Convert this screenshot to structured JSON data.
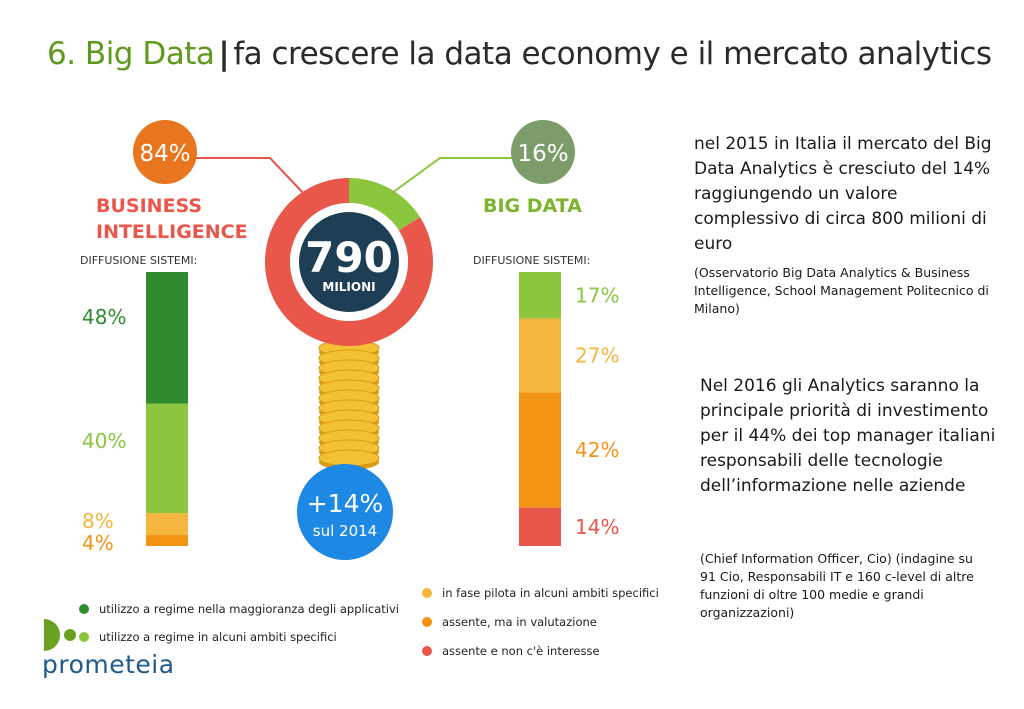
{
  "slide": {
    "title_accent": "6. Big Data",
    "title_sep": "|",
    "title_rest": "fa crescere la data economy e il mercato analytics"
  },
  "chart_data": {
    "type": "infographic",
    "center": {
      "value": "790",
      "unit": "MILIONI"
    },
    "growth": {
      "value": "+14%",
      "label": "sul 2014"
    },
    "split": [
      {
        "name": "BUSINESS\nINTELLIGENCE",
        "label_line1": "BUSINESS",
        "label_line2": "INTELLIGENCE",
        "share": 84,
        "display": "84%"
      },
      {
        "name": "BIG DATA",
        "label_line1": "BIG DATA",
        "share": 16,
        "display": "16%"
      }
    ],
    "diffusion_label": "DIFFUSIONE SISTEMI:",
    "legend": [
      {
        "key": "regime_maggioranza",
        "label": "utilizzo a regime nella maggioranza degli applicativi",
        "color": "#2e8b2e"
      },
      {
        "key": "regime_alcuni",
        "label": "utilizzo a regime in alcuni ambiti specifici",
        "color": "#8cc63f"
      },
      {
        "key": "pilota",
        "label": "in fase pilota in alcuni ambiti specifici",
        "color": "#f4b63f"
      },
      {
        "key": "valutazione",
        "label": "assente, ma in valutazione",
        "color": "#f39314"
      },
      {
        "key": "non_interesse",
        "label": "assente e non c'è interesse",
        "color": "#e8574a"
      }
    ],
    "bars": [
      {
        "name": "BUSINESS INTELLIGENCE",
        "segments": [
          {
            "key": "regime_maggioranza",
            "value": 48,
            "display": "48%"
          },
          {
            "key": "regime_alcuni",
            "value": 40,
            "display": "40%"
          },
          {
            "key": "pilota",
            "value": 8,
            "display": "8%"
          },
          {
            "key": "valutazione",
            "value": 4,
            "display": "4%"
          }
        ]
      },
      {
        "name": "BIG DATA",
        "segments": [
          {
            "key": "regime_alcuni",
            "value": 17,
            "display": "17%"
          },
          {
            "key": "pilota",
            "value": 27,
            "display": "27%"
          },
          {
            "key": "valutazione",
            "value": 42,
            "display": "42%"
          },
          {
            "key": "non_interesse",
            "value": 14,
            "display": "14%"
          }
        ]
      }
    ]
  },
  "text_blocks": {
    "p1": "nel 2015 in Italia il mercato del Big Data Analytics è cresciuto del 14% raggiungendo un valore complessivo di circa 800 milioni di euro",
    "p2": "(Osservatorio Big Data Analytics & Business Intelligence, School Management Politecnico di Milano)",
    "p3": "Nel 2016 gli Analytics saranno la principale priorità di investimento per il 44% dei top manager italiani responsabili delle tecnologie dell’informazione nelle aziende",
    "p4": "(Chief Information Officer, Cio) (indagine su 91 Cio, Responsabili IT e 160 c-level di altre funzioni di oltre 100 medie e grandi organizzazioni)"
  },
  "logo": {
    "text": "prometeia",
    "color": "#1e5b8c",
    "accent": "#6aa121"
  }
}
